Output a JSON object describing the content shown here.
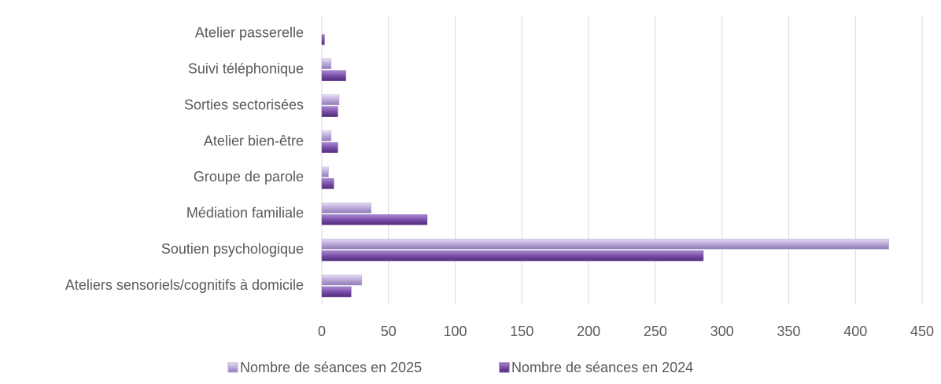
{
  "chart_data": {
    "type": "bar",
    "orientation": "horizontal",
    "categories": [
      "Atelier passerelle",
      "Suivi téléphonique",
      "Sorties sectorisées",
      "Atelier bien-être",
      "Groupe de parole",
      "Médiation familiale",
      "Soutien psychologique",
      "Ateliers sensoriels/cognitifs à domicile"
    ],
    "series": [
      {
        "name": "Nombre de séances en 2025",
        "color": "#b9a8d8",
        "values": [
          0,
          7,
          13,
          7,
          5,
          37,
          425,
          30
        ]
      },
      {
        "name": "Nombre de séances en 2024",
        "color": "#7b4fa9",
        "values": [
          2,
          18,
          12,
          12,
          9,
          79,
          286,
          22
        ]
      }
    ],
    "xlim": [
      0,
      450
    ],
    "xticks": [
      0,
      50,
      100,
      150,
      200,
      250,
      300,
      350,
      400,
      450
    ],
    "grid": true,
    "legend": "bottom"
  }
}
